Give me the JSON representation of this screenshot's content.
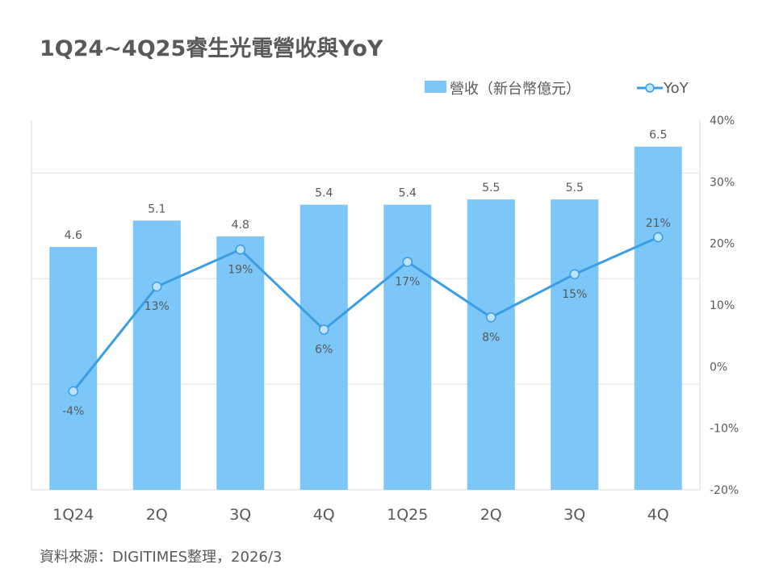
{
  "chart_data": {
    "type": "bar",
    "title": "1Q24~4Q25睿生光電營收與YoY",
    "categories": [
      "1Q24",
      "2Q",
      "3Q",
      "4Q",
      "1Q25",
      "2Q",
      "3Q",
      "4Q"
    ],
    "series": [
      {
        "name": "營收（新台幣億元）",
        "type": "bar",
        "axis": "left",
        "values": [
          4.6,
          5.1,
          4.8,
          5.4,
          5.4,
          5.5,
          5.5,
          6.5
        ],
        "labels": [
          "4.6",
          "5.1",
          "4.8",
          "5.4",
          "5.4",
          "5.5",
          "5.5",
          "6.5"
        ],
        "color": "#7cc7f7"
      },
      {
        "name": "YoY",
        "type": "line",
        "axis": "right",
        "values": [
          -4,
          13,
          19,
          6,
          17,
          8,
          15,
          21
        ],
        "labels": [
          "-4%",
          "13%",
          "19%",
          "6%",
          "17%",
          "8%",
          "15%",
          "21%"
        ],
        "color": "#3a9ee6"
      }
    ],
    "y_left_range": [
      0,
      7
    ],
    "y_right_range": [
      -20,
      40
    ],
    "y_right_ticks": [
      "40%",
      "30%",
      "20%",
      "10%",
      "0%",
      "-10%",
      "-20%"
    ],
    "grid": true,
    "legend_position": "top-right",
    "source": "資料來源：DIGITIMES整理，2026/3"
  }
}
